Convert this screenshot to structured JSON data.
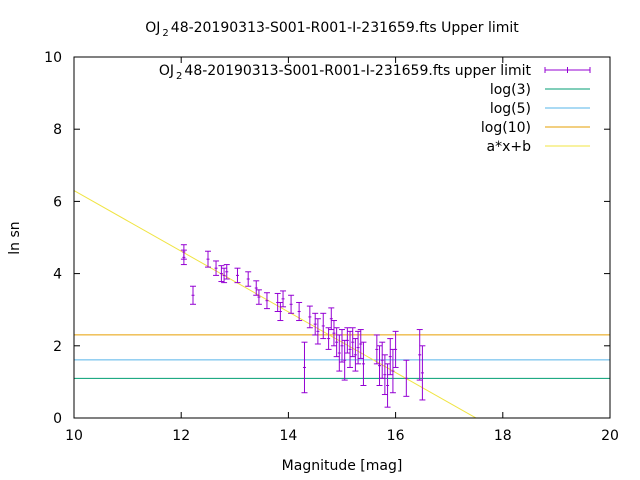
{
  "chart_data": {
    "type": "scatter",
    "title_prefix": "OJ",
    "title_sub": "2",
    "title_suffix": "48-20190313-S001-R001-I-231659.fts Upper limit",
    "xlabel": "Magnitude [mag]",
    "ylabel": "ln sn",
    "xlim": [
      10,
      20
    ],
    "ylim": [
      0,
      10
    ],
    "xticks": [
      10,
      12,
      14,
      16,
      18,
      20
    ],
    "yticks": [
      0,
      2,
      4,
      6,
      8,
      10
    ],
    "grid": false,
    "legend_position": "top-right",
    "series": [
      {
        "name_prefix": "OJ",
        "name_sub": "2",
        "name_suffix": "48-20190313-S001-R001-I-231659.fts upper limit",
        "kind": "errorbar",
        "color": "#9400d3",
        "points": [
          [
            12.05,
            4.6,
            0.2
          ],
          [
            12.05,
            4.45,
            0.2
          ],
          [
            12.22,
            3.4,
            0.25
          ],
          [
            12.5,
            4.4,
            0.22
          ],
          [
            12.65,
            4.15,
            0.2
          ],
          [
            12.75,
            4.0,
            0.22
          ],
          [
            12.85,
            4.05,
            0.2
          ],
          [
            12.8,
            3.95,
            0.2
          ],
          [
            13.05,
            3.95,
            0.2
          ],
          [
            13.25,
            3.85,
            0.2
          ],
          [
            13.4,
            3.6,
            0.2
          ],
          [
            13.45,
            3.35,
            0.2
          ],
          [
            13.6,
            3.25,
            0.22
          ],
          [
            13.8,
            3.2,
            0.25
          ],
          [
            13.85,
            2.95,
            0.25
          ],
          [
            13.9,
            3.3,
            0.22
          ],
          [
            14.05,
            3.15,
            0.25
          ],
          [
            14.2,
            2.95,
            0.25
          ],
          [
            14.3,
            1.4,
            0.7
          ],
          [
            14.4,
            2.8,
            0.3
          ],
          [
            14.5,
            2.6,
            0.3
          ],
          [
            14.55,
            2.4,
            0.35
          ],
          [
            14.65,
            2.55,
            0.35
          ],
          [
            14.75,
            2.2,
            0.3
          ],
          [
            14.8,
            2.75,
            0.3
          ],
          [
            14.85,
            2.35,
            0.35
          ],
          [
            14.9,
            2.1,
            0.4
          ],
          [
            14.95,
            1.8,
            0.5
          ],
          [
            15.0,
            2.0,
            0.45
          ],
          [
            15.05,
            1.6,
            0.55
          ],
          [
            15.1,
            2.15,
            0.35
          ],
          [
            15.15,
            1.9,
            0.5
          ],
          [
            15.2,
            2.1,
            0.4
          ],
          [
            15.25,
            1.75,
            0.45
          ],
          [
            15.3,
            1.95,
            0.45
          ],
          [
            15.35,
            2.05,
            0.4
          ],
          [
            15.4,
            1.5,
            0.6
          ],
          [
            15.65,
            1.9,
            0.4
          ],
          [
            15.7,
            1.45,
            0.55
          ],
          [
            15.75,
            1.6,
            0.5
          ],
          [
            15.8,
            1.2,
            0.55
          ],
          [
            15.85,
            0.9,
            0.6
          ],
          [
            15.9,
            1.7,
            0.5
          ],
          [
            15.95,
            1.3,
            0.6
          ],
          [
            16.0,
            1.9,
            0.5
          ],
          [
            16.2,
            1.1,
            0.5
          ],
          [
            16.45,
            1.75,
            0.7
          ],
          [
            16.5,
            1.25,
            0.75
          ]
        ]
      },
      {
        "name": "log(3)",
        "kind": "hline",
        "y": 1.0986,
        "color": "#009e73"
      },
      {
        "name": "log(5)",
        "kind": "hline",
        "y": 1.6094,
        "color": "#56b4e9"
      },
      {
        "name": "log(10)",
        "kind": "hline",
        "y": 2.3026,
        "color": "#e69f00"
      },
      {
        "name": "a*x+b",
        "kind": "line",
        "slope": -0.84,
        "intercept": 14.7,
        "color": "#f0e442"
      }
    ]
  }
}
